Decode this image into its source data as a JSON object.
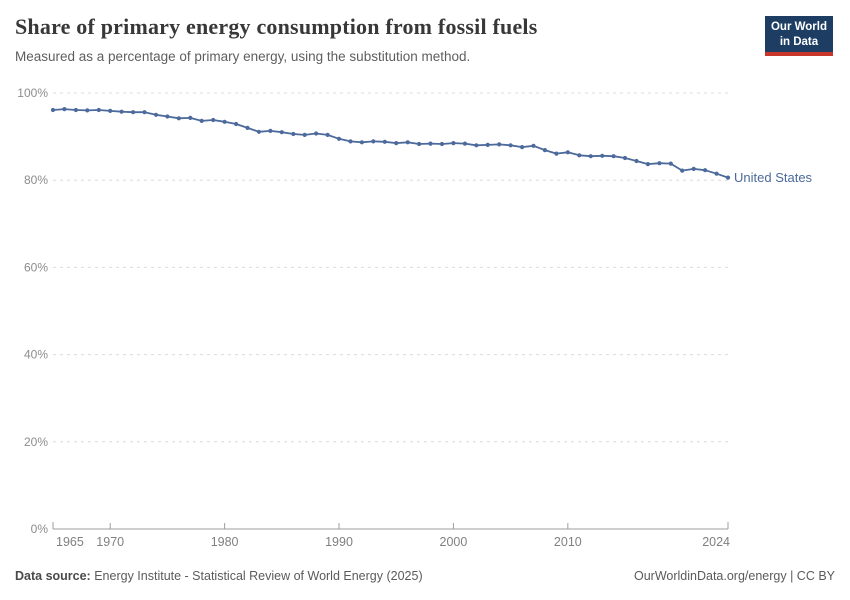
{
  "header": {
    "title": "Share of primary energy consumption from fossil fuels",
    "subtitle": "Measured as a percentage of primary energy, using the substitution method."
  },
  "logo": {
    "line1": "Our World",
    "line2": "in Data"
  },
  "chart_data": {
    "type": "line",
    "title": "Share of primary energy consumption from fossil fuels",
    "subtitle": "Measured as a percentage of primary energy, using the substitution method.",
    "xlabel": "",
    "ylabel": "",
    "ylim": [
      0,
      100
    ],
    "xlim": [
      1965,
      2024
    ],
    "grid": "horizontal-dashed",
    "legend": "label-at-line-end",
    "y_ticks": [
      0,
      20,
      40,
      60,
      80,
      100
    ],
    "y_tick_labels": [
      "0%",
      "20%",
      "40%",
      "60%",
      "80%",
      "100%"
    ],
    "x_ticks": [
      1965,
      1970,
      1980,
      1990,
      2000,
      2010,
      2024
    ],
    "x": [
      1965,
      1966,
      1967,
      1968,
      1969,
      1970,
      1971,
      1972,
      1973,
      1974,
      1975,
      1976,
      1977,
      1978,
      1979,
      1980,
      1981,
      1982,
      1983,
      1984,
      1985,
      1986,
      1987,
      1988,
      1989,
      1990,
      1991,
      1992,
      1993,
      1994,
      1995,
      1996,
      1997,
      1998,
      1999,
      2000,
      2001,
      2002,
      2003,
      2004,
      2005,
      2006,
      2007,
      2008,
      2009,
      2010,
      2011,
      2012,
      2013,
      2014,
      2015,
      2016,
      2017,
      2018,
      2019,
      2020,
      2021,
      2022,
      2023,
      2024
    ],
    "series": [
      {
        "name": "United States",
        "color": "#4C6A9C",
        "values": [
          96.1,
          96.3,
          96.1,
          96.0,
          96.1,
          95.9,
          95.7,
          95.6,
          95.6,
          95.0,
          94.6,
          94.2,
          94.3,
          93.6,
          93.8,
          93.4,
          92.9,
          92.0,
          91.1,
          91.3,
          91.0,
          90.6,
          90.4,
          90.7,
          90.4,
          89.5,
          88.9,
          88.7,
          88.9,
          88.8,
          88.5,
          88.7,
          88.3,
          88.4,
          88.3,
          88.5,
          88.4,
          88.0,
          88.1,
          88.2,
          88.0,
          87.6,
          87.9,
          86.9,
          86.1,
          86.4,
          85.7,
          85.5,
          85.6,
          85.5,
          85.1,
          84.4,
          83.7,
          83.9,
          83.8,
          82.2,
          82.6,
          82.3,
          81.5,
          80.6
        ]
      }
    ]
  },
  "footer": {
    "source_label": "Data source:",
    "source_text": "Energy Institute - Statistical Review of World Energy (2025)",
    "link_text": "OurWorldinData.org/energy | CC BY"
  },
  "colors": {
    "series_blue": "#4C6A9C",
    "logo_navy": "#1d3d63",
    "logo_red": "#c8362b",
    "grid_gray": "#dcdcdc",
    "axis_gray": "#9e9e9e",
    "tick_text": "#8d8d8d"
  }
}
